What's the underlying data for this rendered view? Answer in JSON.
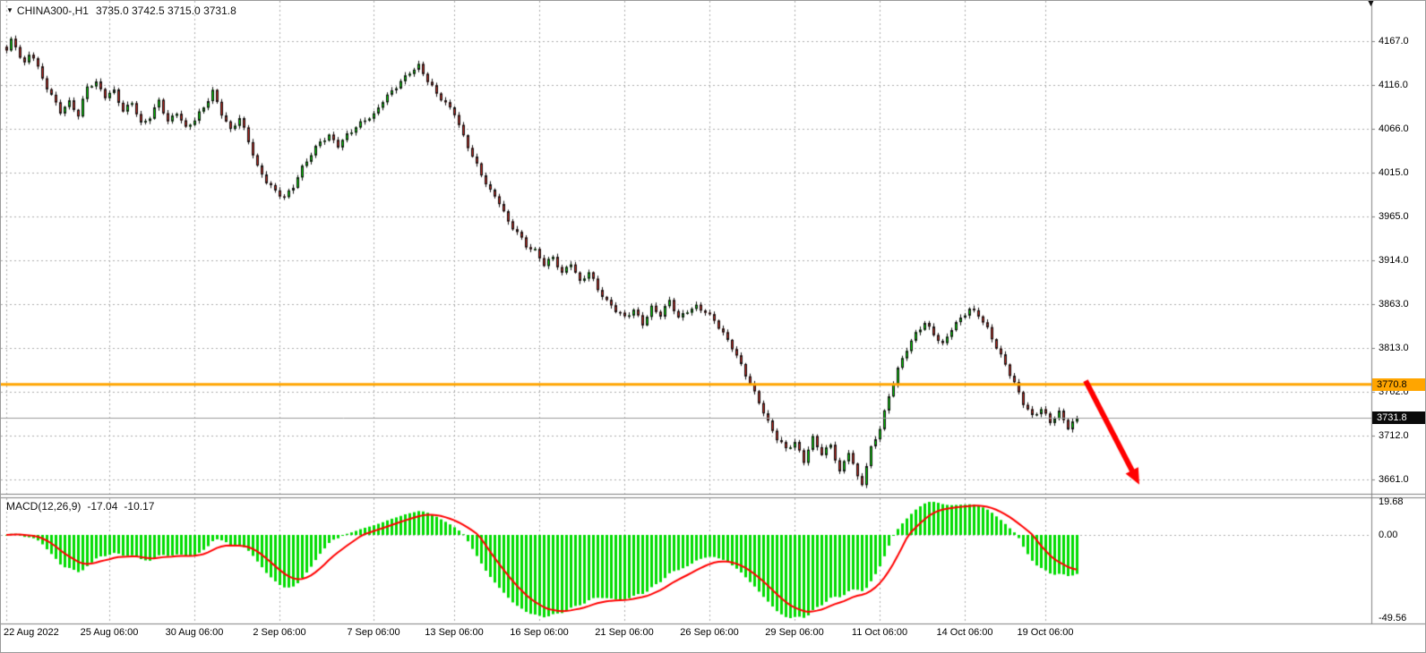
{
  "header": {
    "marker_icon": "▼",
    "symbol_timeframe": "CHINA300-,H1",
    "ohlc": "3735.0 3742.5 3715.0 3731.8"
  },
  "icons": {
    "shift_marker": "▼"
  },
  "chart_data": [
    {
      "type": "candlestick",
      "title": "CHINA300-,H1",
      "symbol": "CHINA300-",
      "timeframe": "H1",
      "current_bar_ohlc": {
        "open": 3735.0,
        "high": 3742.5,
        "low": 3715.0,
        "close": 3731.8
      },
      "bars_total": 240,
      "close_anchors": [
        [
          0,
          4155
        ],
        [
          1,
          4166
        ],
        [
          2,
          4160
        ],
        [
          3,
          4148
        ],
        [
          4,
          4140
        ],
        [
          5,
          4152
        ],
        [
          6,
          4150
        ],
        [
          8,
          4125
        ],
        [
          10,
          4105
        ],
        [
          12,
          4085
        ],
        [
          14,
          4095
        ],
        [
          16,
          4080
        ],
        [
          18,
          4115
        ],
        [
          20,
          4120
        ],
        [
          22,
          4105
        ],
        [
          24,
          4110
        ],
        [
          26,
          4085
        ],
        [
          28,
          4095
        ],
        [
          30,
          4070
        ],
        [
          32,
          4080
        ],
        [
          34,
          4100
        ],
        [
          36,
          4075
        ],
        [
          38,
          4085
        ],
        [
          40,
          4065
        ],
        [
          42,
          4075
        ],
        [
          44,
          4090
        ],
        [
          46,
          4110
        ],
        [
          48,
          4085
        ],
        [
          50,
          4065
        ],
        [
          52,
          4078
        ],
        [
          54,
          4050
        ],
        [
          56,
          4020
        ],
        [
          58,
          4005
        ],
        [
          60,
          3995
        ],
        [
          62,
          3988
        ],
        [
          64,
          4000
        ],
        [
          66,
          4020
        ],
        [
          68,
          4035
        ],
        [
          70,
          4050
        ],
        [
          72,
          4058
        ],
        [
          74,
          4048
        ],
        [
          76,
          4060
        ],
        [
          78,
          4068
        ],
        [
          80,
          4075
        ],
        [
          82,
          4080
        ],
        [
          84,
          4098
        ],
        [
          86,
          4110
        ],
        [
          88,
          4122
        ],
        [
          90,
          4132
        ],
        [
          92,
          4138
        ],
        [
          94,
          4120
        ],
        [
          96,
          4105
        ],
        [
          98,
          4095
        ],
        [
          100,
          4085
        ],
        [
          102,
          4058
        ],
        [
          104,
          4035
        ],
        [
          106,
          4012
        ],
        [
          108,
          3992
        ],
        [
          110,
          3980
        ],
        [
          112,
          3958
        ],
        [
          114,
          3948
        ],
        [
          116,
          3932
        ],
        [
          118,
          3925
        ],
        [
          120,
          3908
        ],
        [
          122,
          3916
        ],
        [
          124,
          3898
        ],
        [
          126,
          3912
        ],
        [
          128,
          3890
        ],
        [
          130,
          3902
        ],
        [
          132,
          3880
        ],
        [
          134,
          3865
        ],
        [
          136,
          3855
        ],
        [
          138,
          3848
        ],
        [
          140,
          3858
        ],
        [
          142,
          3842
        ],
        [
          144,
          3860
        ],
        [
          146,
          3850
        ],
        [
          148,
          3866
        ],
        [
          150,
          3846
        ],
        [
          152,
          3856
        ],
        [
          154,
          3862
        ],
        [
          156,
          3856
        ],
        [
          158,
          3845
        ],
        [
          160,
          3828
        ],
        [
          162,
          3812
        ],
        [
          164,
          3792
        ],
        [
          166,
          3772
        ],
        [
          168,
          3752
        ],
        [
          170,
          3728
        ],
        [
          172,
          3708
        ],
        [
          174,
          3695
        ],
        [
          176,
          3702
        ],
        [
          178,
          3682
        ],
        [
          180,
          3710
        ],
        [
          182,
          3692
        ],
        [
          184,
          3702
        ],
        [
          186,
          3668
        ],
        [
          188,
          3692
        ],
        [
          190,
          3662
        ],
        [
          191,
          3656
        ],
        [
          193,
          3698
        ],
        [
          195,
          3722
        ],
        [
          197,
          3758
        ],
        [
          199,
          3788
        ],
        [
          201,
          3810
        ],
        [
          203,
          3828
        ],
        [
          205,
          3842
        ],
        [
          207,
          3830
        ],
        [
          209,
          3818
        ],
        [
          211,
          3836
        ],
        [
          213,
          3846
        ],
        [
          215,
          3856
        ],
        [
          217,
          3850
        ],
        [
          219,
          3835
        ],
        [
          221,
          3815
        ],
        [
          223,
          3795
        ],
        [
          225,
          3772
        ],
        [
          227,
          3748
        ],
        [
          229,
          3732
        ],
        [
          231,
          3742
        ],
        [
          233,
          3728
        ],
        [
          235,
          3740
        ],
        [
          237,
          3722
        ],
        [
          239,
          3731.8
        ]
      ],
      "y_axis_ticks": [
        4167.0,
        4116.0,
        4066.0,
        4015.0,
        3965.0,
        3914.0,
        3863.0,
        3813.0,
        3762.0,
        3712.0,
        3661.0
      ],
      "x_axis_labels": [
        {
          "bar": 0,
          "label": "22 Aug 2022"
        },
        {
          "bar": 23,
          "label": "25 Aug 06:00"
        },
        {
          "bar": 42,
          "label": "30 Aug 06:00"
        },
        {
          "bar": 61,
          "label": "2 Sep 06:00"
        },
        {
          "bar": 82,
          "label": "7 Sep 06:00"
        },
        {
          "bar": 100,
          "label": "13 Sep 06:00"
        },
        {
          "bar": 119,
          "label": "16 Sep 06:00"
        },
        {
          "bar": 138,
          "label": "21 Sep 06:00"
        },
        {
          "bar": 157,
          "label": "26 Sep 06:00"
        },
        {
          "bar": 176,
          "label": "29 Sep 06:00"
        },
        {
          "bar": 195,
          "label": "11 Oct 06:00"
        },
        {
          "bar": 214,
          "label": "14 Oct 06:00"
        },
        {
          "bar": 232,
          "label": "19 Oct 06:00"
        }
      ],
      "horizontal_line": {
        "price": 3770.8,
        "label": "3770.8",
        "color": "#FFA500"
      },
      "current_price": {
        "price": 3731.8,
        "label": "3731.8"
      },
      "trend_arrow": {
        "from": {
          "bar": 241,
          "price": 3775
        },
        "to": {
          "bar": 253,
          "price": 3655
        },
        "color": "#FF0000"
      },
      "colors": {
        "bull": "#00DC00",
        "bear": "#C62820",
        "outline": "#111111",
        "grid": "#ADADAD",
        "background": "#FFFFFF",
        "axis_line": "#808080",
        "current_price_line": "#9A9A9A",
        "tag_text_dark": "#000000",
        "tag_bg_dark": "#0A0A0A",
        "tag_text_light": "#FFFFFF"
      }
    },
    {
      "type": "macd",
      "label": "MACD(12,26,9)",
      "fast": 12,
      "slow": 26,
      "signal": 9,
      "macd_value": -17.04,
      "signal_value": -10.17,
      "y_axis_ticks": [
        19.68,
        0.0,
        -49.56
      ],
      "colors": {
        "histogram": "#00DC00",
        "signal_line": "#FF0000"
      }
    }
  ]
}
